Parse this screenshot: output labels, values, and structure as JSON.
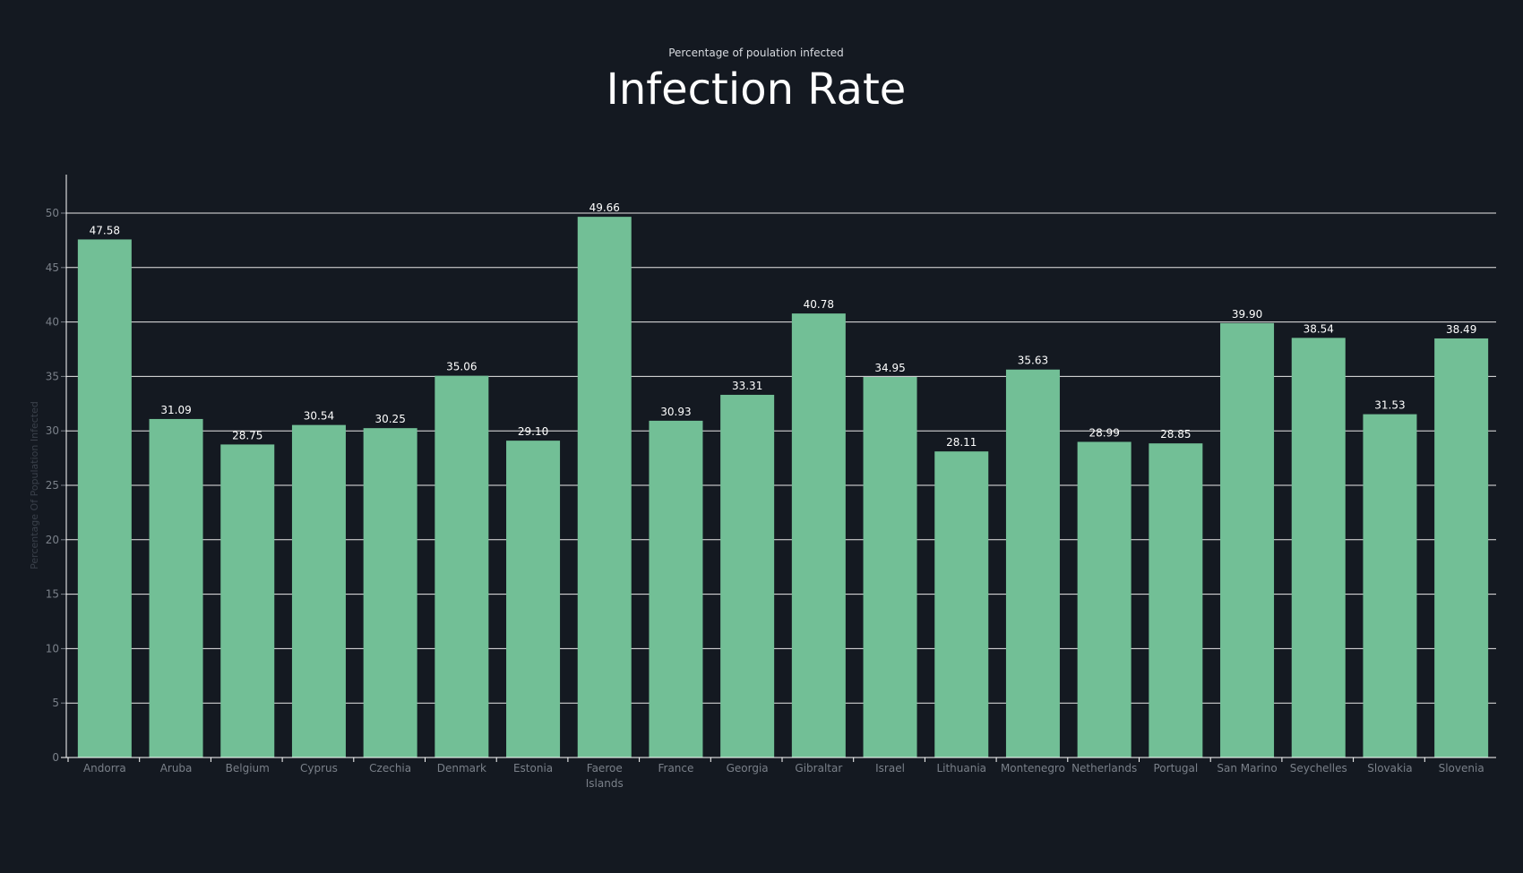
{
  "chart_data": {
    "type": "bar",
    "title": "Infection Rate",
    "subtitle": "Percentage of poulation infected",
    "ylabel": "Percentage Of Population Infected",
    "xlabel": "",
    "ylim": [
      0,
      50
    ],
    "yticks": [
      0,
      5,
      10,
      15,
      20,
      25,
      30,
      35,
      40,
      45,
      50
    ],
    "grid": true,
    "categories": [
      "Andorra",
      "Aruba",
      "Belgium",
      "Cyprus",
      "Czechia",
      "Denmark",
      "Estonia",
      "Faeroe Islands",
      "France",
      "Georgia",
      "Gibraltar",
      "Israel",
      "Lithuania",
      "Montenegro",
      "Netherlands",
      "Portugal",
      "San Marino",
      "Seychelles",
      "Slovakia",
      "Slovenia"
    ],
    "values": [
      47.58,
      31.09,
      28.75,
      30.54,
      30.25,
      35.06,
      29.1,
      49.66,
      30.93,
      33.31,
      40.78,
      34.95,
      28.11,
      35.63,
      28.99,
      28.85,
      39.9,
      38.54,
      31.53,
      38.49
    ],
    "value_labels": [
      "47.58",
      "31.09",
      "28.75",
      "30.54",
      "30.25",
      "35.06",
      "29.10",
      "49.66",
      "30.93",
      "33.31",
      "40.78",
      "34.95",
      "28.11",
      "35.63",
      "28.99",
      "28.85",
      "39.90",
      "38.54",
      "31.53",
      "38.49"
    ],
    "colors": {
      "bar": "#72bf96",
      "grid": "#e8e8e8",
      "axis_text": "#7a8089",
      "ylabel_text": "#3a404a",
      "value_text": "#ffffff",
      "background": "#141921"
    }
  }
}
